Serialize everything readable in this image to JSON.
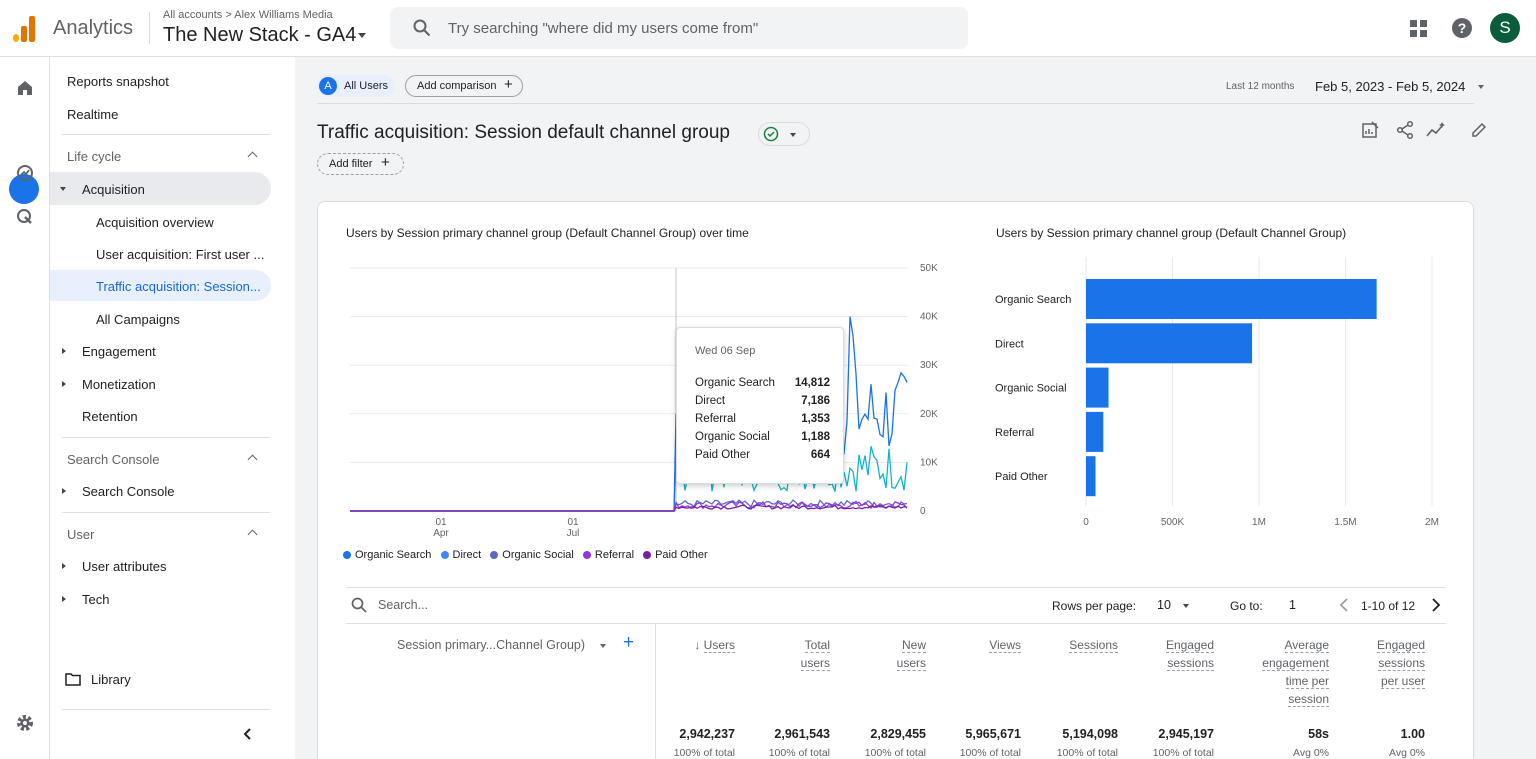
{
  "header": {
    "app_name": "Analytics",
    "account_crumb": "All accounts > Alex Williams Media",
    "property_name": "The New Stack - GA4",
    "search_placeholder": "Try searching \"where did my users come from\"",
    "avatar_letter": "S"
  },
  "rail": {
    "icons": [
      "home-icon",
      "reports-icon",
      "explore-icon",
      "advertising-icon",
      "settings-icon"
    ]
  },
  "nav": {
    "reports_snapshot": "Reports snapshot",
    "realtime": "Realtime",
    "lifecycle": "Life cycle",
    "acquisition": "Acquisition",
    "acquisition_overview": "Acquisition overview",
    "user_acquisition": "User acquisition: First user ...",
    "traffic_acquisition": "Traffic acquisition: Session...",
    "all_campaigns": "All Campaigns",
    "engagement": "Engagement",
    "monetization": "Monetization",
    "retention": "Retention",
    "search_console_section": "Search Console",
    "search_console": "Search Console",
    "user_section": "User",
    "user_attributes": "User attributes",
    "tech": "Tech",
    "library": "Library"
  },
  "toolbar": {
    "segment_letter": "A",
    "all_users": "All Users",
    "add_comparison": "Add comparison",
    "date_range_label": "Last 12 months",
    "date_range": "Feb 5, 2023 - Feb 5, 2024",
    "add_filter": "Add filter",
    "page_title": "Traffic acquisition: Session default channel group"
  },
  "chart_data": [
    {
      "type": "line",
      "title": "Users by Session primary channel group (Default Channel Group) over time",
      "x_tick_labels": [
        {
          "day": "01",
          "month": "Apr"
        },
        {
          "day": "01",
          "month": "Jul"
        }
      ],
      "ylim": [
        0,
        50000
      ],
      "y_ticks": [
        "50K",
        "40K",
        "30K",
        "20K",
        "10K",
        "0"
      ],
      "y_tick_values": [
        50000,
        40000,
        30000,
        20000,
        10000,
        0
      ],
      "series": [
        {
          "name": "Organic Search",
          "color": "#1a73e8",
          "shape": "spiky, zero until late Aug then 10K–40K"
        },
        {
          "name": "Direct",
          "color": "#12b5cb",
          "shape": "zero until late Aug then ~5K–20K"
        },
        {
          "name": "Organic Social",
          "color": "#5c6bc0"
        },
        {
          "name": "Referral",
          "color": "#9334e6"
        },
        {
          "name": "Paid Other",
          "color": "#7b1fa2"
        }
      ]
    },
    {
      "type": "bar",
      "orientation": "horizontal",
      "title": "Users by Session primary channel group (Default Channel Group)",
      "categories": [
        "Organic Search",
        "Direct",
        "Organic Social",
        "Referral",
        "Paid Other"
      ],
      "values": [
        1680000,
        960000,
        130000,
        100000,
        55000
      ],
      "xlim": [
        0,
        2000000
      ],
      "x_ticks": [
        "0",
        "500K",
        "1M",
        "1.5M",
        "2M"
      ],
      "x_tick_values": [
        0,
        500000,
        1000000,
        1500000,
        2000000
      ],
      "color": "#1a73e8"
    }
  ],
  "legend": [
    "Organic Search",
    "Direct",
    "Organic Social",
    "Referral",
    "Paid Other"
  ],
  "tooltip": {
    "date": "Wed 06 Sep",
    "rows": [
      {
        "label": "Organic Search",
        "value": "14,812"
      },
      {
        "label": "Direct",
        "value": "7,186"
      },
      {
        "label": "Referral",
        "value": "1,353"
      },
      {
        "label": "Organic Social",
        "value": "1,188"
      },
      {
        "label": "Paid Other",
        "value": "664"
      }
    ]
  },
  "table": {
    "search_placeholder": "Search...",
    "rows_per_page_label": "Rows per page:",
    "rows_per_page": "10",
    "goto_label": "Go to:",
    "goto_value": "1",
    "pagination": "1-10 of 12",
    "dimension_header": "Session primary...Channel Group)",
    "columns": [
      {
        "label": "Users",
        "total": "2,942,237",
        "sub": "100% of total"
      },
      {
        "label": "Total users",
        "total": "2,961,543",
        "sub": "100% of total"
      },
      {
        "label": "New users",
        "total": "2,829,455",
        "sub": "100% of total"
      },
      {
        "label": "Views",
        "total": "5,965,671",
        "sub": "100% of total"
      },
      {
        "label": "Sessions",
        "total": "5,194,098",
        "sub": "100% of total"
      },
      {
        "label": "Engaged sessions",
        "total": "2,945,197",
        "sub": "100% of total"
      },
      {
        "label": "Average engagement time per session",
        "total": "58s",
        "sub": "Avg 0%"
      },
      {
        "label": "Engaged sessions per user",
        "total": "1.00",
        "sub": "Avg 0%"
      }
    ]
  }
}
